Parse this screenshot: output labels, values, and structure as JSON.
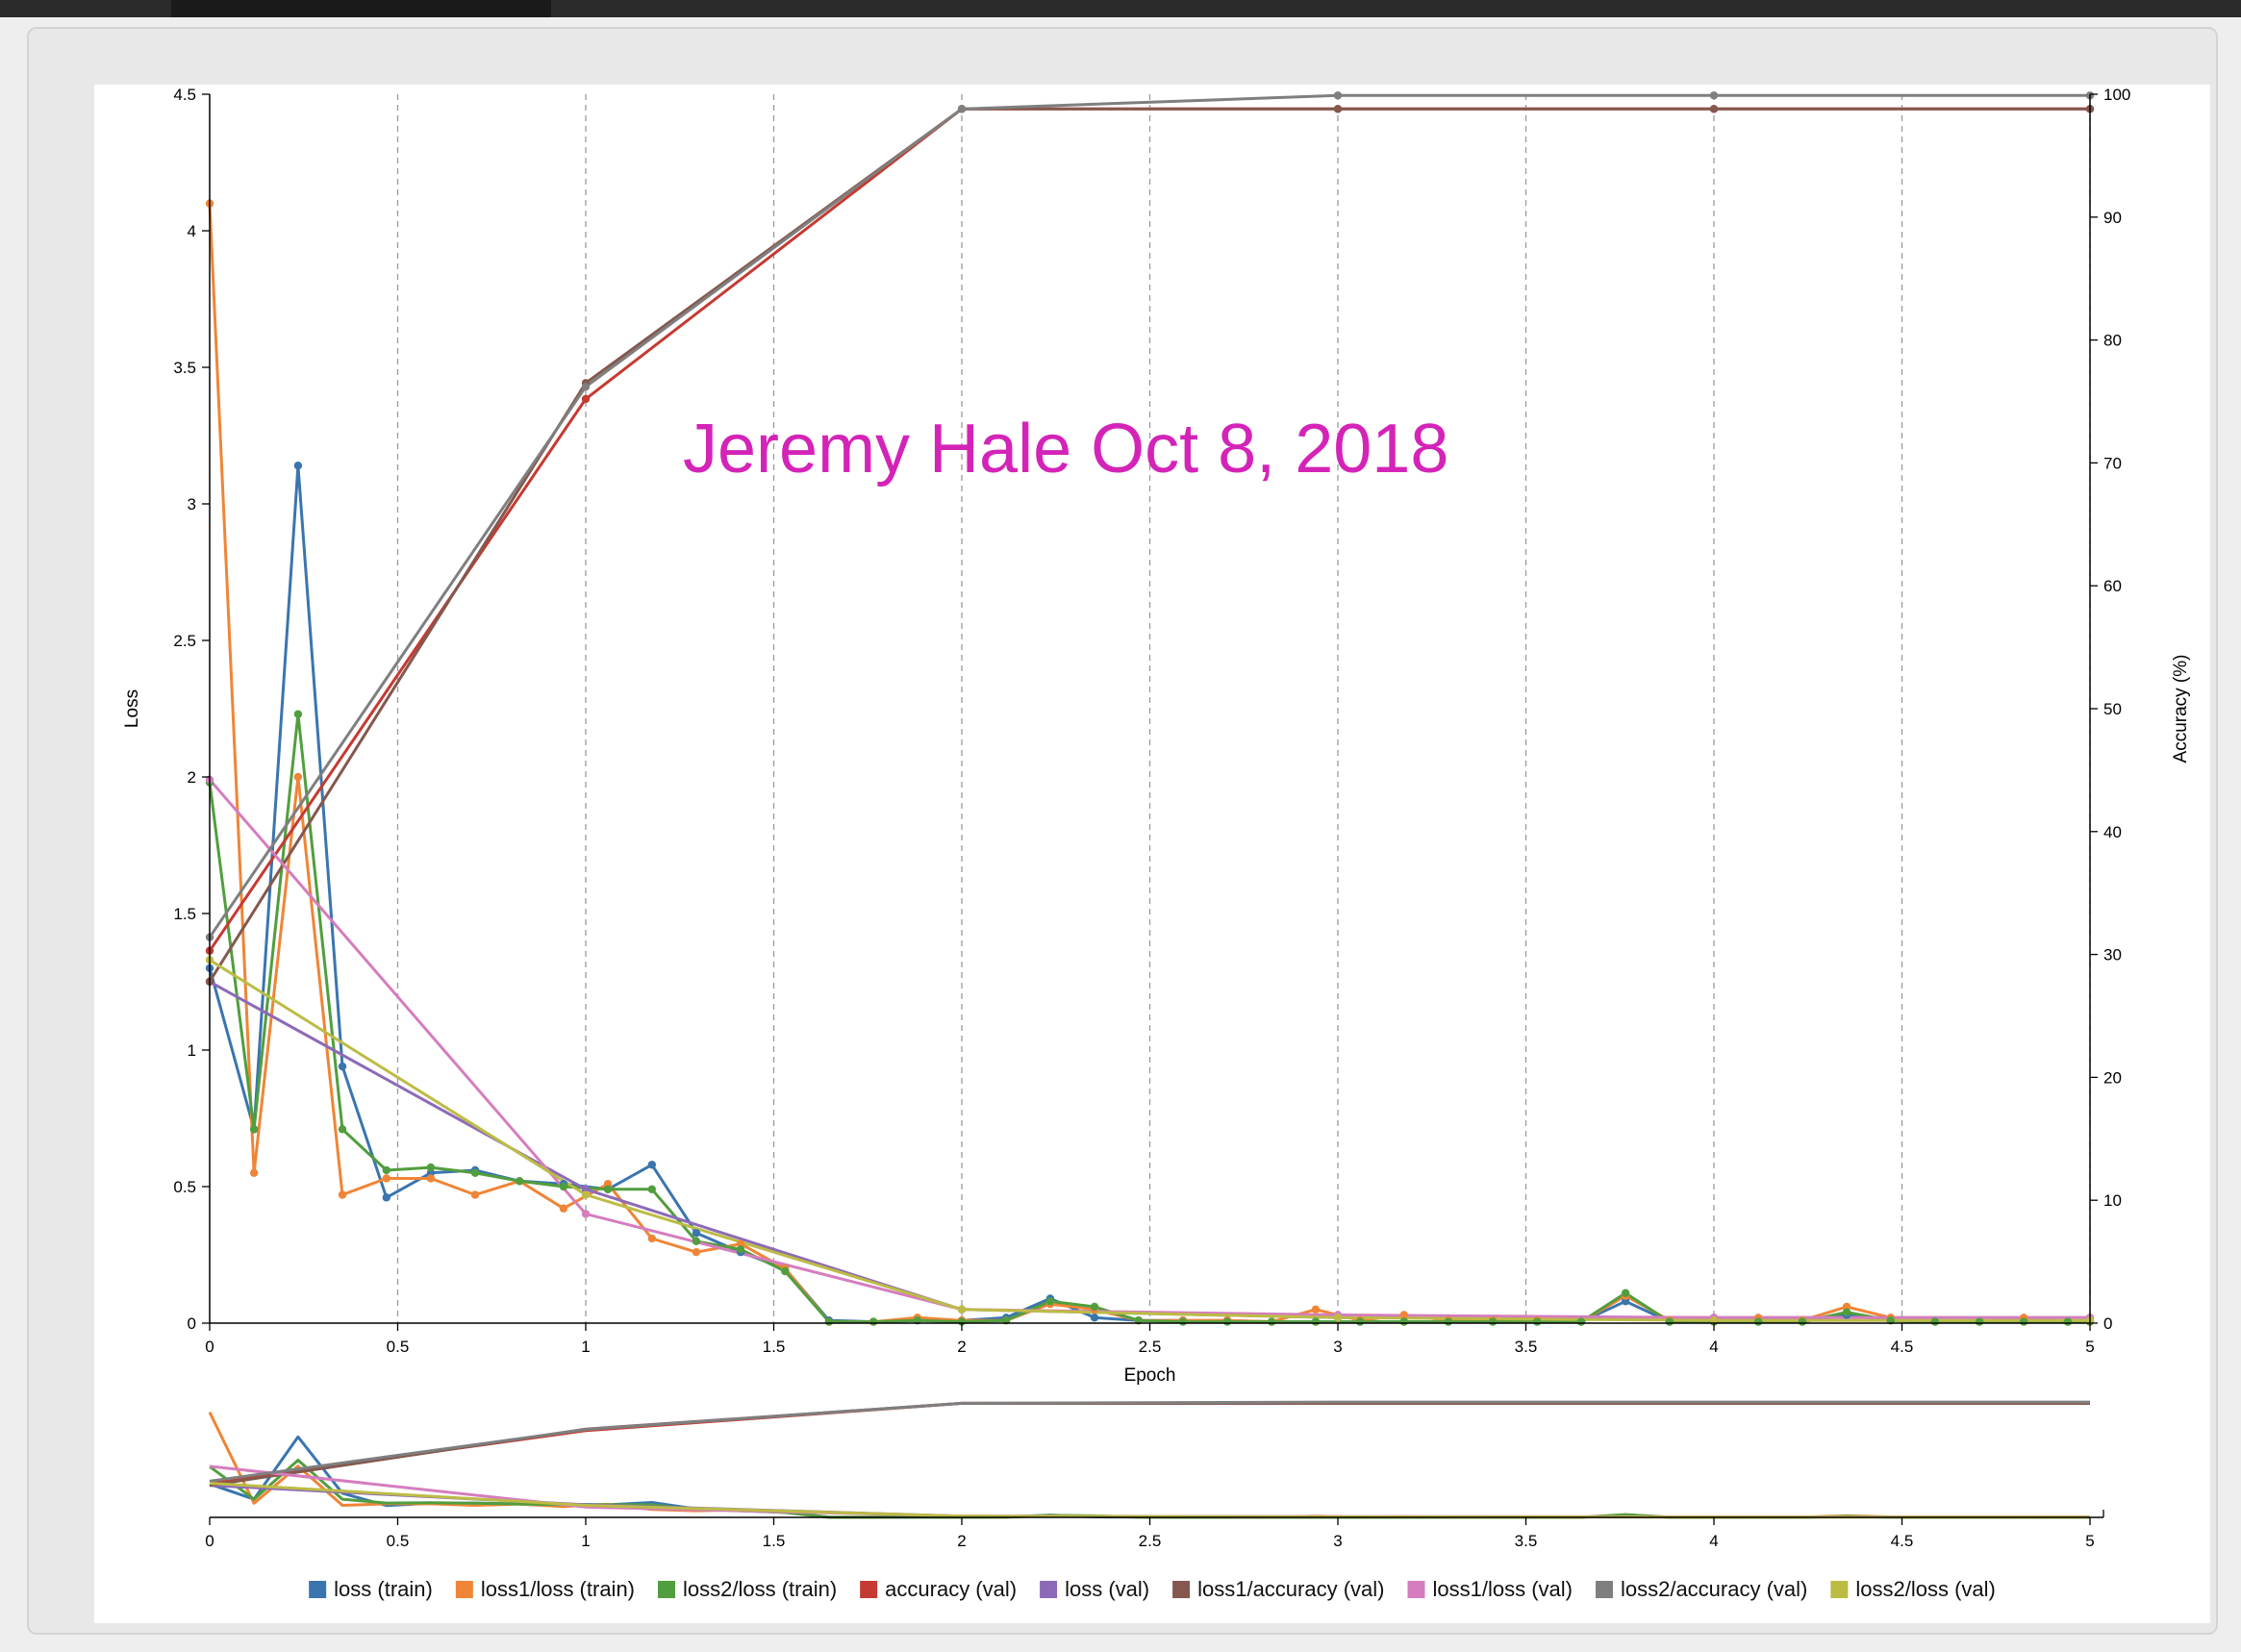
{
  "watermark": "Jeremy Hale Oct 8, 2018",
  "colors": {
    "loss_train": "#3a75ae",
    "loss1_loss_train": "#ef8536",
    "loss2_loss_train": "#519e3e",
    "accuracy_val": "#c53a32",
    "loss_val": "#8d6ab8",
    "loss1_accuracy_val": "#84584e",
    "loss1_loss_val": "#d57dbe",
    "loss2_accuracy_val": "#7f7f7f",
    "loss2_loss_val": "#bcbc45",
    "watermark": "#d424b8"
  },
  "chart_data": {
    "type": "line",
    "xlabel": "Epoch",
    "ylabel": "Loss",
    "y2label": "Accuracy (%)",
    "xlim": [
      0,
      5
    ],
    "ylim": [
      0,
      4.5
    ],
    "y2lim": [
      0,
      100
    ],
    "x_ticks": [
      "0",
      "0.5",
      "1",
      "1.5",
      "2",
      "2.5",
      "3",
      "3.5",
      "4",
      "4.5",
      "5"
    ],
    "y_ticks": [
      "0",
      "0.5",
      "1",
      "1.5",
      "2",
      "2.5",
      "3",
      "3.5",
      "4",
      "4.5"
    ],
    "y2_ticks": [
      "0",
      "10",
      "20",
      "30",
      "40",
      "50",
      "60",
      "70",
      "80",
      "90",
      "100"
    ],
    "grid": "vertical dashed",
    "legend_position": "bottom",
    "series": [
      {
        "name": "loss (train)",
        "color_key": "loss_train",
        "axis": "left",
        "x": [
          0,
          0.118,
          0.235,
          0.353,
          0.47,
          0.588,
          0.706,
          0.824,
          0.941,
          1.059,
          1.176,
          1.294,
          1.412,
          1.53,
          1.647,
          1.765,
          1.882,
          2.0,
          2.118,
          2.235,
          2.353,
          2.47,
          2.588,
          2.706,
          2.824,
          2.941,
          3.059,
          3.176,
          3.294,
          3.412,
          3.53,
          3.647,
          3.765,
          3.882,
          4.0,
          4.118,
          4.235,
          4.353,
          4.47,
          4.588,
          4.706,
          4.824,
          4.941,
          5.0
        ],
        "y": [
          1.3,
          0.71,
          3.14,
          0.94,
          0.46,
          0.55,
          0.56,
          0.52,
          0.51,
          0.49,
          0.58,
          0.33,
          0.26,
          0.2,
          0.01,
          0.005,
          0.01,
          0.01,
          0.02,
          0.09,
          0.02,
          0.01,
          0.01,
          0.01,
          0.005,
          0.005,
          0.005,
          0.005,
          0.005,
          0.005,
          0.005,
          0.005,
          0.08,
          0.005,
          0.005,
          0.005,
          0.005,
          0.03,
          0.01,
          0.005,
          0.005,
          0.005,
          0.005,
          0.005
        ]
      },
      {
        "name": "loss1/loss (train)",
        "color_key": "loss1_loss_train",
        "axis": "left",
        "x": [
          0,
          0.118,
          0.235,
          0.353,
          0.47,
          0.588,
          0.706,
          0.824,
          0.941,
          1.059,
          1.176,
          1.294,
          1.412,
          1.53,
          1.647,
          1.765,
          1.882,
          2.0,
          2.118,
          2.235,
          2.353,
          2.47,
          2.588,
          2.706,
          2.824,
          2.941,
          3.059,
          3.176,
          3.294,
          3.412,
          3.53,
          3.647,
          3.765,
          3.882,
          4.0,
          4.118,
          4.235,
          4.353,
          4.47,
          4.588,
          4.706,
          4.824,
          4.941,
          5.0
        ],
        "y": [
          4.1,
          0.55,
          2.0,
          0.47,
          0.53,
          0.53,
          0.47,
          0.52,
          0.42,
          0.51,
          0.31,
          0.26,
          0.29,
          0.2,
          0.005,
          0.005,
          0.02,
          0.01,
          0.01,
          0.07,
          0.05,
          0.01,
          0.01,
          0.01,
          0.005,
          0.05,
          0.01,
          0.03,
          0.01,
          0.01,
          0.01,
          0.005,
          0.1,
          0.01,
          0.01,
          0.02,
          0.01,
          0.06,
          0.02,
          0.005,
          0.005,
          0.02,
          0.005,
          0.005
        ]
      },
      {
        "name": "loss2/loss (train)",
        "color_key": "loss2_loss_train",
        "axis": "left",
        "x": [
          0,
          0.118,
          0.235,
          0.353,
          0.47,
          0.588,
          0.706,
          0.824,
          0.941,
          1.059,
          1.176,
          1.294,
          1.412,
          1.53,
          1.647,
          1.765,
          1.882,
          2.0,
          2.118,
          2.235,
          2.353,
          2.47,
          2.588,
          2.706,
          2.824,
          2.941,
          3.059,
          3.176,
          3.294,
          3.412,
          3.53,
          3.647,
          3.765,
          3.882,
          4.0,
          4.118,
          4.235,
          4.353,
          4.47,
          4.588,
          4.706,
          4.824,
          4.941,
          5.0
        ],
        "y": [
          1.98,
          0.71,
          2.23,
          0.71,
          0.56,
          0.57,
          0.55,
          0.52,
          0.5,
          0.49,
          0.49,
          0.3,
          0.27,
          0.19,
          0.005,
          0.005,
          0.01,
          0.005,
          0.01,
          0.08,
          0.06,
          0.01,
          0.005,
          0.005,
          0.005,
          0.005,
          0.005,
          0.005,
          0.005,
          0.005,
          0.005,
          0.005,
          0.11,
          0.005,
          0.005,
          0.005,
          0.005,
          0.04,
          0.01,
          0.005,
          0.005,
          0.005,
          0.005,
          0.005
        ]
      },
      {
        "name": "accuracy (val)",
        "color_key": "accuracy_val",
        "axis": "right",
        "x": [
          0,
          1,
          2,
          3,
          4,
          5
        ],
        "y": [
          30.3,
          75.2,
          98.8,
          98.8,
          98.8,
          98.8
        ]
      },
      {
        "name": "loss (val)",
        "color_key": "loss_val",
        "axis": "left",
        "x": [
          0,
          1,
          2,
          3,
          4,
          5
        ],
        "y": [
          1.25,
          0.49,
          0.05,
          0.02,
          0.02,
          0.02
        ]
      },
      {
        "name": "loss1/accuracy (val)",
        "color_key": "loss1_accuracy_val",
        "axis": "right",
        "x": [
          0,
          1,
          2,
          3,
          4,
          5
        ],
        "y": [
          27.8,
          76.5,
          98.8,
          98.8,
          98.8,
          98.8
        ]
      },
      {
        "name": "loss1/loss (val)",
        "color_key": "loss1_loss_val",
        "axis": "left",
        "x": [
          0,
          1,
          2,
          3,
          4,
          5
        ],
        "y": [
          1.99,
          0.4,
          0.05,
          0.03,
          0.02,
          0.02
        ]
      },
      {
        "name": "loss2/accuracy (val)",
        "color_key": "loss2_accuracy_val",
        "axis": "right",
        "x": [
          0,
          1,
          2,
          3,
          4,
          5
        ],
        "y": [
          31.4,
          76.2,
          98.8,
          99.9,
          99.9,
          99.9
        ]
      },
      {
        "name": "loss2/loss (val)",
        "color_key": "loss2_loss_val",
        "axis": "left",
        "x": [
          0,
          1,
          2,
          3,
          4,
          5
        ],
        "y": [
          1.33,
          0.47,
          0.05,
          0.02,
          0.01,
          0.01
        ]
      }
    ]
  }
}
